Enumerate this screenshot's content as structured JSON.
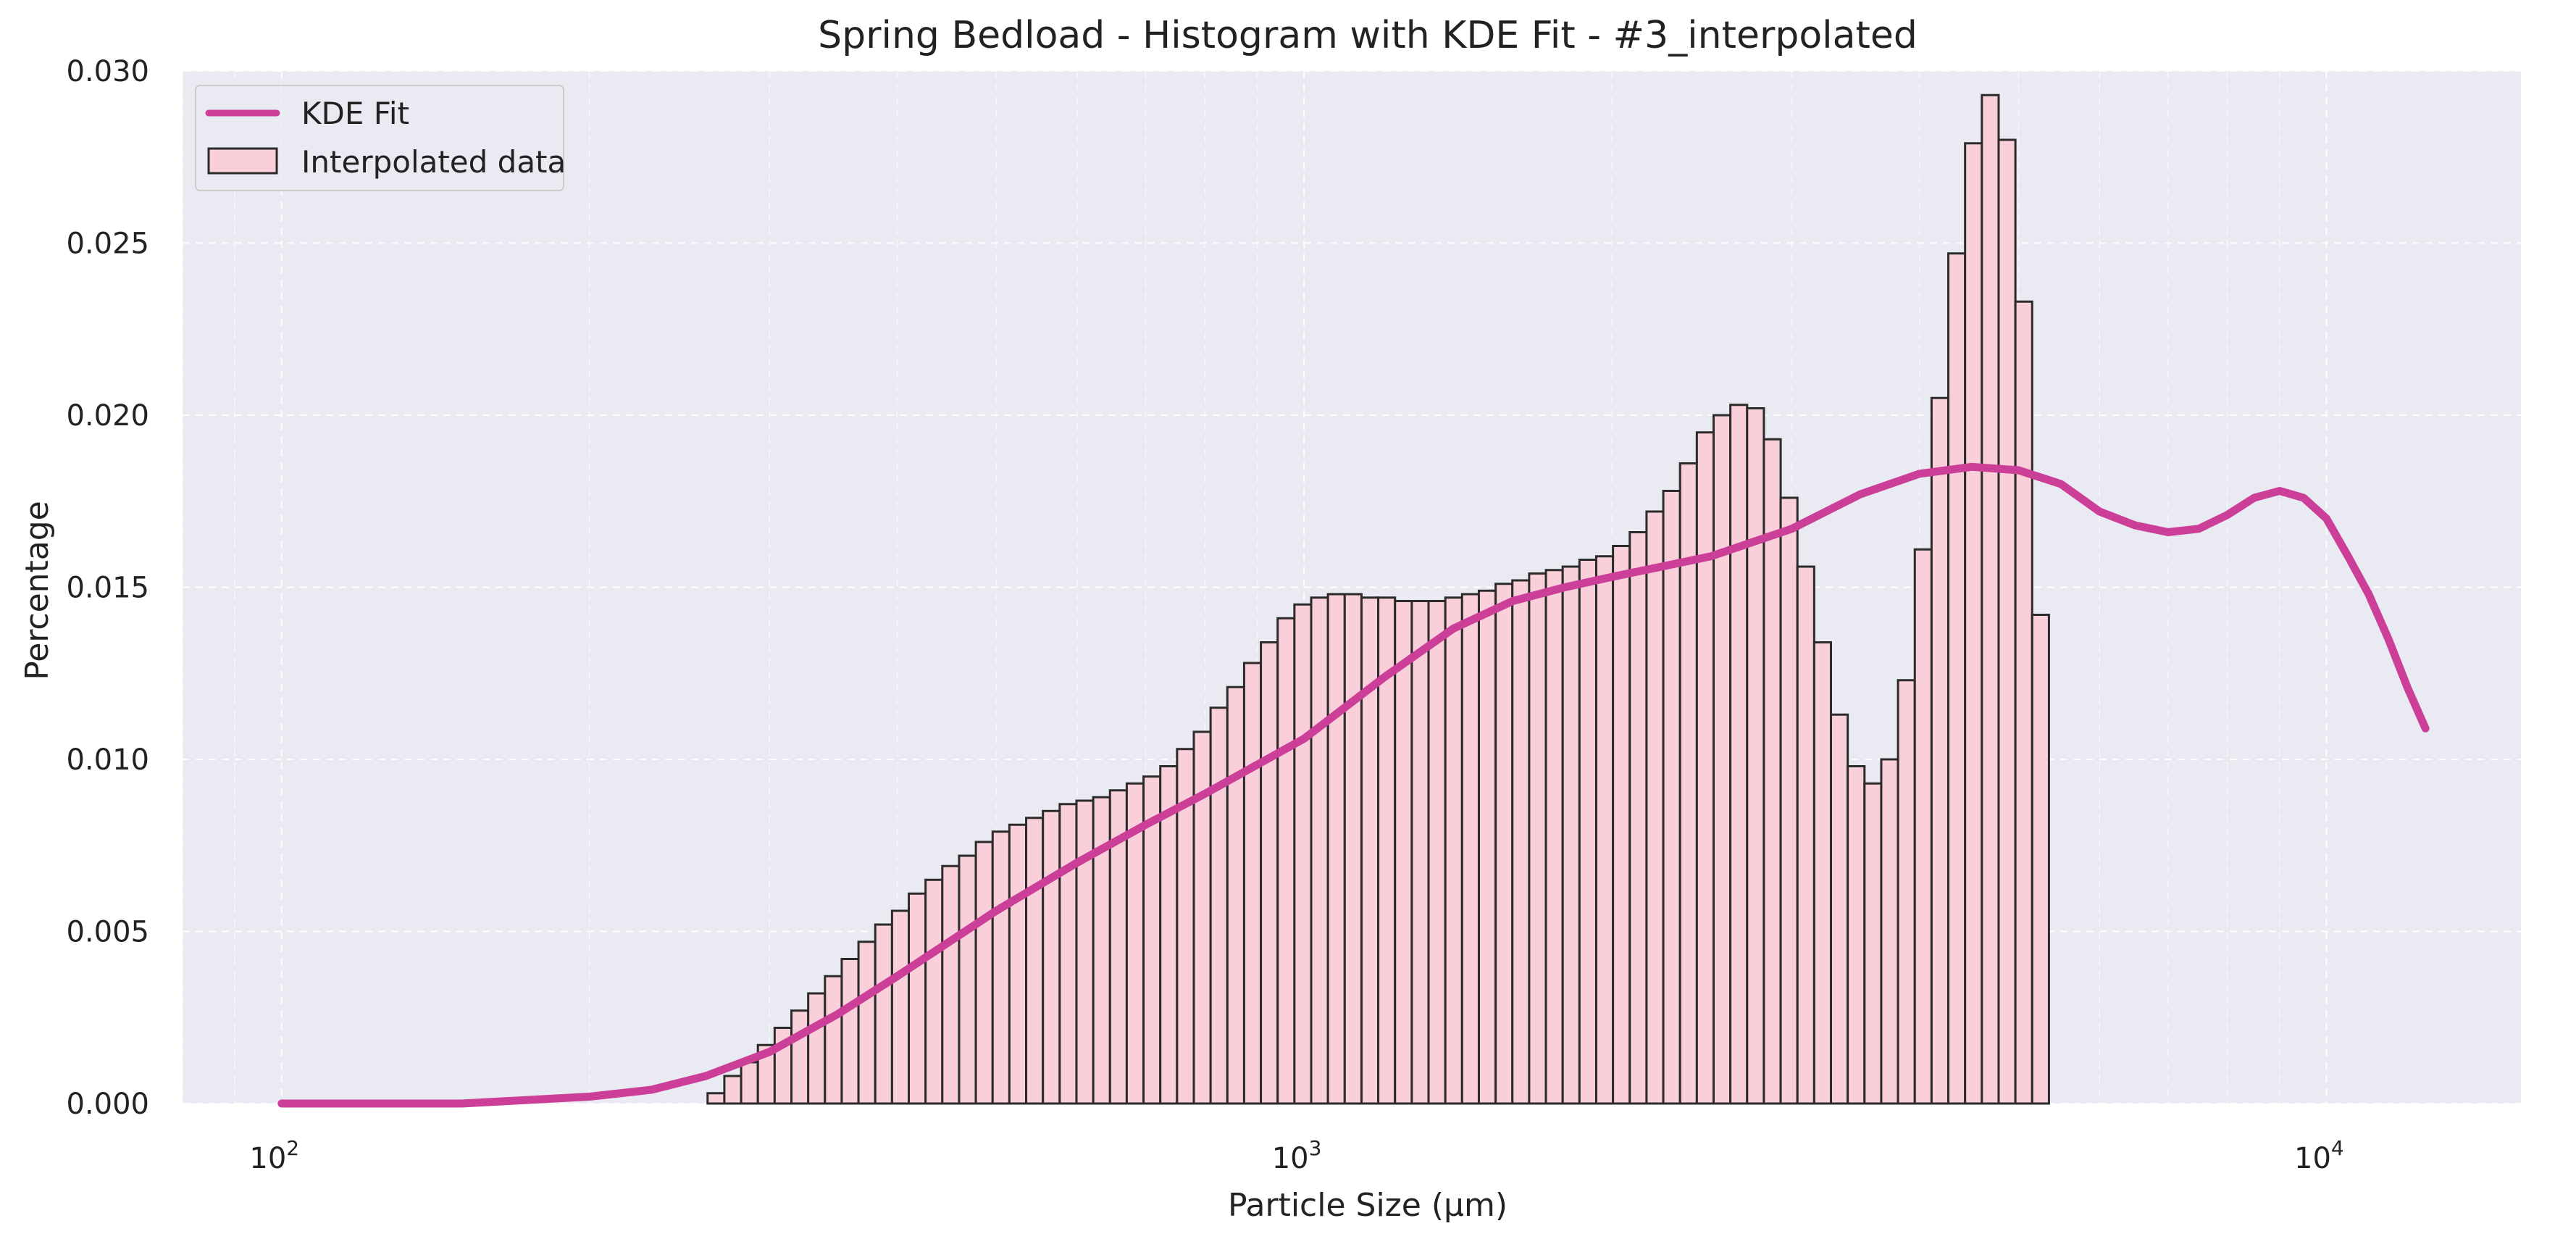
{
  "chart_data": {
    "type": "bar",
    "title": "Spring Bedload - Histogram with KDE Fit - #3_interpolated",
    "xlabel": "Particle Size (μm)",
    "ylabel": "Percentage",
    "xscale": "log",
    "xlim": [
      80,
      15500
    ],
    "ylim": [
      0,
      0.03
    ],
    "grid": true,
    "legend_position": "upper-left",
    "x_tick_labels": [
      {
        "value": 100,
        "base": "10",
        "exp": "2"
      },
      {
        "value": 1000,
        "base": "10",
        "exp": "3"
      },
      {
        "value": 10000,
        "base": "10",
        "exp": "4"
      }
    ],
    "y_ticks": [
      "0.000",
      "0.005",
      "0.010",
      "0.015",
      "0.020",
      "0.025",
      "0.030"
    ],
    "colors": {
      "background": "#eaeaf2",
      "bar_fill": "#f9d0d9",
      "bar_edge": "#2b2b2b",
      "kde_line": "#cc3f99",
      "grid": "#ffffff"
    },
    "series": [
      {
        "name": "Interpolated data",
        "kind": "histogram",
        "bin_start": 261,
        "bin_log10_width": 0.0164,
        "values": [
          0.0003,
          0.0008,
          0.0012,
          0.0017,
          0.0022,
          0.0027,
          0.0032,
          0.0037,
          0.0042,
          0.0047,
          0.0052,
          0.0056,
          0.0061,
          0.0065,
          0.0069,
          0.0072,
          0.0076,
          0.0079,
          0.0081,
          0.0083,
          0.0085,
          0.0087,
          0.0088,
          0.0089,
          0.0091,
          0.0093,
          0.0095,
          0.0098,
          0.0103,
          0.0108,
          0.0115,
          0.0121,
          0.0128,
          0.0134,
          0.0141,
          0.0145,
          0.0147,
          0.0148,
          0.0148,
          0.0147,
          0.0147,
          0.0146,
          0.0146,
          0.0146,
          0.0147,
          0.0148,
          0.0149,
          0.0151,
          0.0152,
          0.0154,
          0.0155,
          0.0156,
          0.0158,
          0.0159,
          0.0162,
          0.0166,
          0.0172,
          0.0178,
          0.0186,
          0.0195,
          0.02,
          0.0203,
          0.0202,
          0.0193,
          0.0176,
          0.0156,
          0.0134,
          0.0113,
          0.0098,
          0.0093,
          0.01,
          0.0123,
          0.0161,
          0.0205,
          0.0247,
          0.0279,
          0.0293,
          0.028,
          0.0233,
          0.0142
        ]
      },
      {
        "name": "KDE Fit",
        "kind": "line",
        "x": [
          100,
          150,
          200,
          230,
          260,
          300,
          350,
          400,
          500,
          600,
          700,
          800,
          1000,
          1200,
          1400,
          1600,
          1800,
          2000,
          2500,
          3000,
          3500,
          4000,
          4500,
          5000,
          5500,
          6000,
          6500,
          7000,
          7500,
          8000,
          8500,
          9000,
          9500,
          10000,
          10500,
          11000,
          11500,
          12000,
          12500
        ],
        "y": [
          0.0,
          0.0,
          0.0002,
          0.0004,
          0.0008,
          0.0015,
          0.0026,
          0.0037,
          0.0056,
          0.007,
          0.0081,
          0.009,
          0.0106,
          0.0124,
          0.0138,
          0.0146,
          0.015,
          0.0153,
          0.0159,
          0.0167,
          0.0177,
          0.0183,
          0.0185,
          0.0184,
          0.018,
          0.0172,
          0.0168,
          0.0166,
          0.0167,
          0.0171,
          0.0176,
          0.0178,
          0.0176,
          0.017,
          0.0159,
          0.0148,
          0.0135,
          0.0121,
          0.0109
        ]
      }
    ],
    "legend": [
      {
        "label": "KDE Fit",
        "kind": "line"
      },
      {
        "label": "Interpolated data",
        "kind": "bar"
      }
    ]
  }
}
